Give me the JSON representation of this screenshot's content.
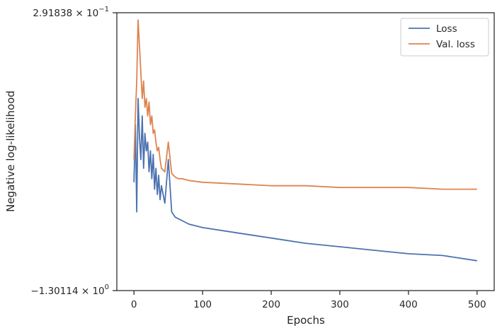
{
  "chart_data": {
    "type": "line",
    "xlabel": "Epochs",
    "ylabel": "Negative log-likelihood",
    "xlim": [
      -25,
      525
    ],
    "ylim": [
      -1.30114,
      0.291838
    ],
    "x_ticks": [
      0,
      100,
      200,
      300,
      400,
      500
    ],
    "y_tick_labels": [
      {
        "value": 0.291838,
        "mantissa": "2.91838",
        "exponent": "−1"
      },
      {
        "value": -1.30114,
        "mantissa": "−1.30114",
        "exponent": "0"
      }
    ],
    "grid": false,
    "legend_position": "upper-right",
    "series": [
      {
        "name": "Loss",
        "color": "#4c72b0",
        "x": [
          0,
          2,
          4,
          6,
          8,
          10,
          12,
          14,
          16,
          18,
          20,
          22,
          24,
          26,
          28,
          30,
          32,
          34,
          36,
          38,
          40,
          45,
          50,
          55,
          60,
          65,
          70,
          80,
          100,
          150,
          200,
          250,
          300,
          350,
          400,
          450,
          500
        ],
        "values": [
          -0.68,
          -0.35,
          -0.85,
          -0.2,
          -0.42,
          -0.55,
          -0.3,
          -0.6,
          -0.4,
          -0.5,
          -0.45,
          -0.62,
          -0.5,
          -0.66,
          -0.52,
          -0.72,
          -0.6,
          -0.75,
          -0.64,
          -0.78,
          -0.7,
          -0.8,
          -0.55,
          -0.85,
          -0.88,
          -0.89,
          -0.9,
          -0.92,
          -0.94,
          -0.97,
          -1.0,
          -1.03,
          -1.05,
          -1.07,
          -1.09,
          -1.1,
          -1.13
        ]
      },
      {
        "name": "Val. loss",
        "color": "#dd8452",
        "x": [
          0,
          2,
          4,
          6,
          8,
          10,
          12,
          14,
          16,
          18,
          20,
          22,
          24,
          26,
          28,
          30,
          32,
          34,
          36,
          38,
          40,
          45,
          50,
          55,
          60,
          65,
          70,
          80,
          100,
          150,
          200,
          250,
          300,
          350,
          400,
          450,
          500
        ],
        "values": [
          -0.55,
          -0.3,
          -0.1,
          0.25,
          0.1,
          -0.05,
          -0.2,
          -0.1,
          -0.25,
          -0.2,
          -0.3,
          -0.22,
          -0.35,
          -0.3,
          -0.4,
          -0.38,
          -0.45,
          -0.5,
          -0.48,
          -0.55,
          -0.6,
          -0.62,
          -0.45,
          -0.63,
          -0.65,
          -0.66,
          -0.66,
          -0.67,
          -0.68,
          -0.69,
          -0.7,
          -0.7,
          -0.71,
          -0.71,
          -0.71,
          -0.72,
          -0.72
        ]
      }
    ]
  }
}
